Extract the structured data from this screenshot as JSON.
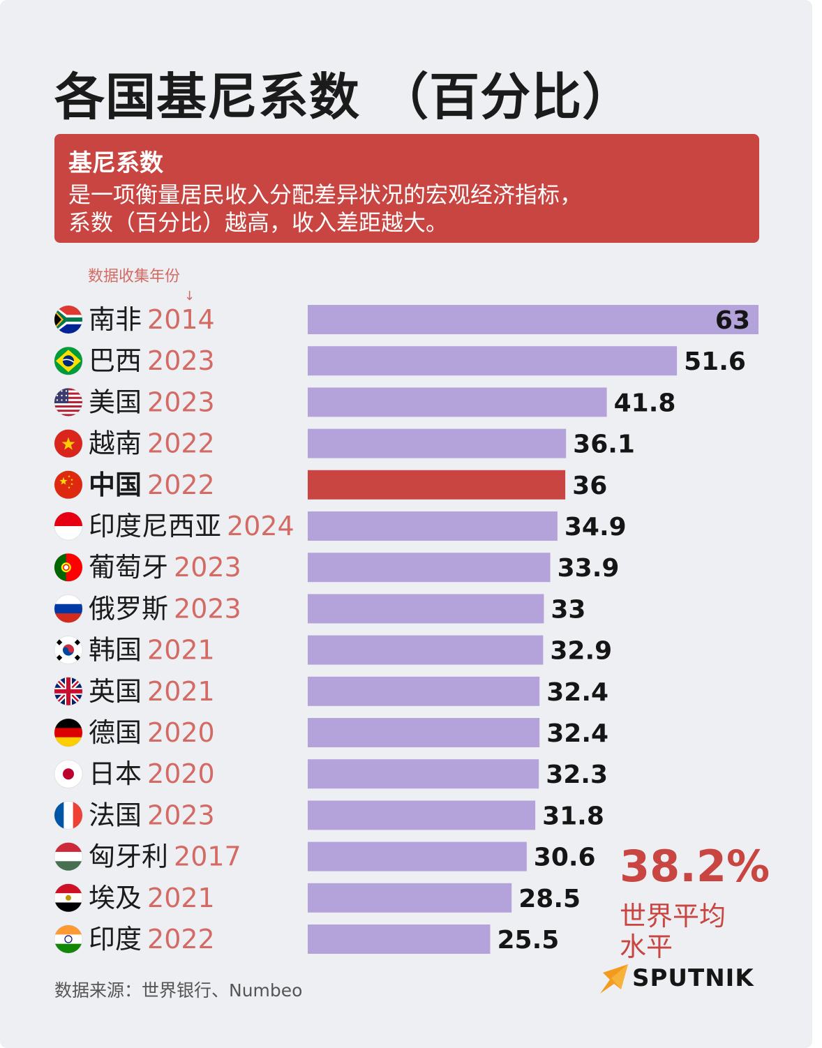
{
  "title": "各国基尼系数 （百分比）",
  "definition": {
    "heading": "基尼系数",
    "line1": "是一项衡量居民收入分配差异状况的宏观经济指标，",
    "line2": "系数（百分比）越高，收入差距越大。"
  },
  "year_note": "数据收集年份",
  "year_arrow": "↓",
  "world_average": {
    "value": "38.2%",
    "label_line1": "世界平均",
    "label_line2": "水平"
  },
  "source": "数据来源：世界银行、Numbeo",
  "logo": {
    "text": "SPUTNIK",
    "icon": "sputnik-arrow-icon"
  },
  "colors": {
    "bar": "#b4a3da",
    "highlight": "#c84541",
    "year": "#d46a64",
    "text": "#1b1b1b"
  },
  "chart_data": {
    "type": "bar",
    "orientation": "horizontal",
    "title": "各国基尼系数 （百分比）",
    "xlim": [
      0,
      63
    ],
    "highlight": "中国",
    "rows": [
      {
        "country": "南非",
        "year": "2014",
        "value": 63,
        "flag": "south-africa-flag-icon"
      },
      {
        "country": "巴西",
        "year": "2023",
        "value": 51.6,
        "flag": "brazil-flag-icon"
      },
      {
        "country": "美国",
        "year": "2023",
        "value": 41.8,
        "flag": "usa-flag-icon"
      },
      {
        "country": "越南",
        "year": "2022",
        "value": 36.1,
        "flag": "vietnam-flag-icon"
      },
      {
        "country": "中国",
        "year": "2022",
        "value": 36,
        "flag": "china-flag-icon"
      },
      {
        "country": "印度尼西亚",
        "year": "2024",
        "value": 34.9,
        "flag": "indonesia-flag-icon"
      },
      {
        "country": "葡萄牙",
        "year": "2023",
        "value": 33.9,
        "flag": "portugal-flag-icon"
      },
      {
        "country": "俄罗斯",
        "year": "2023",
        "value": 33,
        "flag": "russia-flag-icon"
      },
      {
        "country": "韩国",
        "year": "2021",
        "value": 32.9,
        "flag": "korea-flag-icon"
      },
      {
        "country": "英国",
        "year": "2021",
        "value": 32.4,
        "flag": "uk-flag-icon"
      },
      {
        "country": "德国",
        "year": "2020",
        "value": 32.4,
        "flag": "germany-flag-icon"
      },
      {
        "country": "日本",
        "year": "2020",
        "value": 32.3,
        "flag": "japan-flag-icon"
      },
      {
        "country": "法国",
        "year": "2023",
        "value": 31.8,
        "flag": "france-flag-icon"
      },
      {
        "country": "匈牙利",
        "year": "2017",
        "value": 30.6,
        "flag": "hungary-flag-icon"
      },
      {
        "country": "埃及",
        "year": "2021",
        "value": 28.5,
        "flag": "egypt-flag-icon"
      },
      {
        "country": "印度",
        "year": "2022",
        "value": 25.5,
        "flag": "india-flag-icon"
      }
    ]
  }
}
